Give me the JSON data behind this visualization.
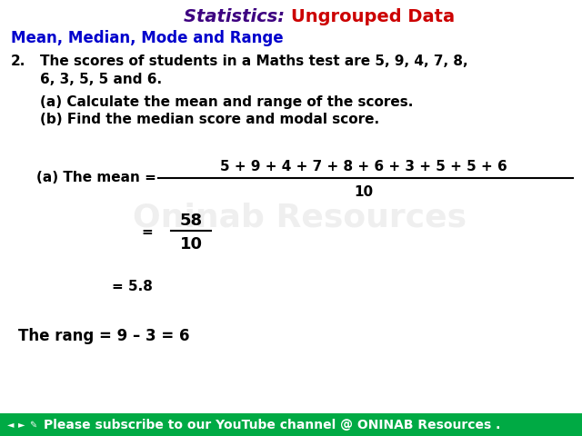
{
  "bg_color": "#ffffff",
  "title_statistics": "Statistics: ",
  "title_ungrouped": "Ungrouped Data",
  "subtitle": "Mean, Median, Mode and Range",
  "q_number": "2.",
  "line1": "The scores of students in a Maths test are 5, 9, 4, 7, 8,",
  "line2": "6, 3, 5, 5 and 6.",
  "line3": "(a) Calculate the mean and range of the scores.",
  "line4": "(b) Find the median score and modal score.",
  "mean_label": "(a) The mean =",
  "numerator": "5 + 9 + 4 + 7 + 8 + 6 + 3 + 5 + 5 + 6",
  "denominator": "10",
  "step2_eq": "=",
  "step2_num": "58",
  "step2_den": "10",
  "step3": "= 5.8",
  "range_line": "The rang = 9 – 3 = 6",
  "watermark": "Oninab Resources",
  "footer": "Please subscribe to our YouTube channel @ ONINAB Resources .",
  "title_color": "#3d0080",
  "ungrouped_color": "#cc0000",
  "subtitle_color": "#0000cc",
  "body_color": "#000000",
  "footer_bg": "#00aa44",
  "footer_color": "#ffffff",
  "watermark_color": "#cccccc",
  "title_fontsize": 14,
  "subtitle_fontsize": 12,
  "body_fontsize": 11,
  "footer_fontsize": 10
}
